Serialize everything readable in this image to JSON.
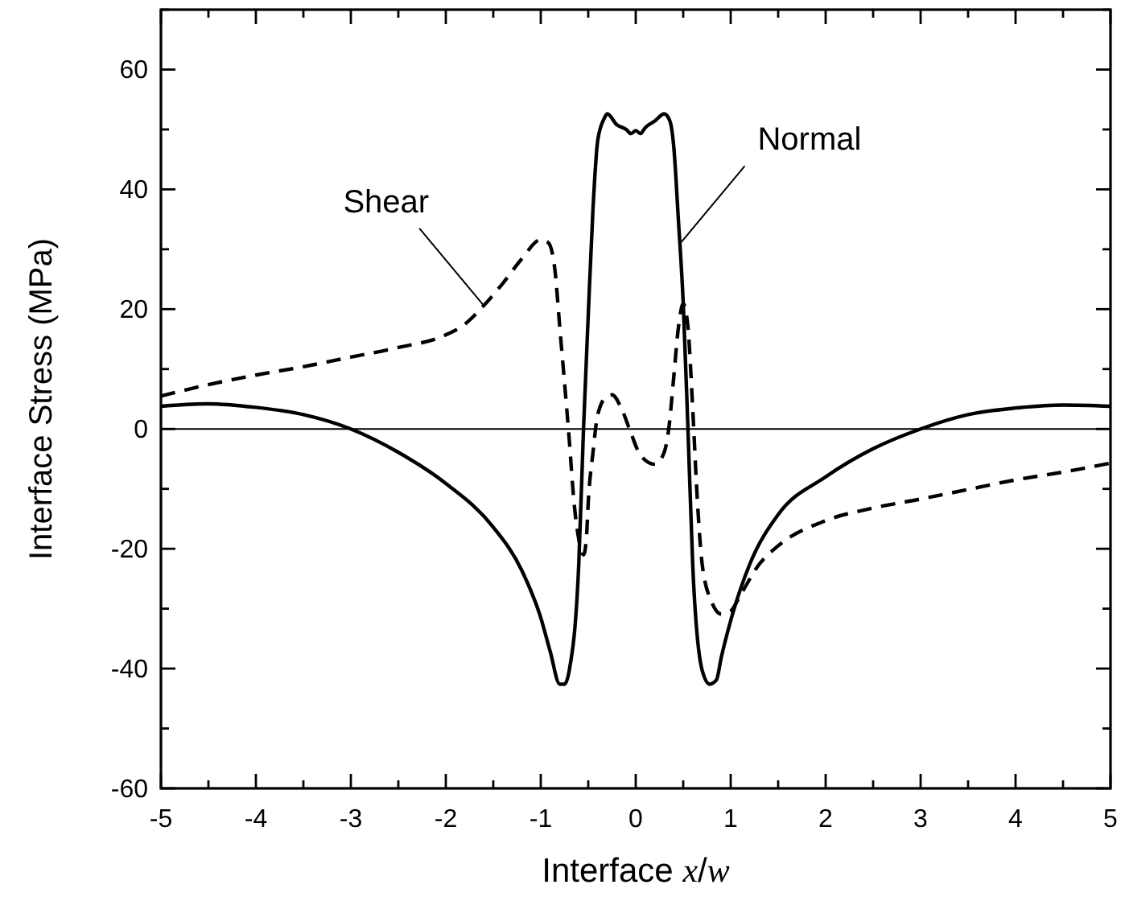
{
  "chart_data": {
    "type": "line",
    "xlabel": "Interface x/w",
    "ylabel": "Interface Stress (MPa)",
    "xlim": [
      -5,
      5
    ],
    "ylim": [
      -60,
      70
    ],
    "xticks": [
      -5,
      {
        "value": -4.5,
        "label": null
      },
      -4,
      {
        "value": -3.5,
        "label": null
      },
      -3,
      {
        "value": -2.5,
        "label": null
      },
      -2,
      {
        "value": -1.5,
        "label": null
      },
      -1,
      {
        "value": -0.5,
        "label": null
      },
      0,
      {
        "value": 0.5,
        "label": null
      },
      1,
      {
        "value": 1.5,
        "label": null
      },
      2,
      {
        "value": 2.5,
        "label": null
      },
      3,
      {
        "value": 3.5,
        "label": null
      },
      4,
      {
        "value": 4.5,
        "label": null
      },
      5
    ],
    "yticks": [
      -60,
      {
        "value": -50,
        "label": null
      },
      -40,
      {
        "value": -30,
        "label": null
      },
      -20,
      {
        "value": -10,
        "label": null
      },
      0,
      {
        "value": 10,
        "label": null
      },
      20,
      {
        "value": 30,
        "label": null
      },
      40,
      {
        "value": 50,
        "label": null
      },
      60,
      {
        "value": 70,
        "label": null
      }
    ],
    "grid": false,
    "marker": "none",
    "ref_lines": [
      {
        "axis": "y",
        "value": 0,
        "color": "#000000",
        "line_style": "solid"
      }
    ],
    "annotations": [
      {
        "text": "Shear",
        "x": -1.6,
        "y": 20.6
      },
      {
        "text": "Normal",
        "x": 0.47,
        "y": 31
      }
    ],
    "series": [
      {
        "color": "#000000",
        "line_style": "solid",
        "x": [
          -5,
          -4.5,
          -4,
          -3.5,
          -3,
          -2.5,
          -2,
          -1.5,
          -1.2,
          -1,
          -0.9,
          -0.8,
          -0.75,
          -0.7,
          -0.6,
          -0.55,
          -0.5,
          -0.45,
          -0.4,
          -0.33,
          -0.3,
          -0.2,
          -0.1,
          -0.05,
          0,
          0.05,
          0.1,
          0.2,
          0.3,
          0.36,
          0.4,
          0.45,
          0.5,
          0.55,
          0.6,
          0.7,
          0.78,
          0.85,
          0.9,
          1,
          1.2,
          1.5,
          2,
          2.5,
          3,
          3.5,
          4,
          4.5,
          5
        ],
        "values": [
          3.8,
          4.2,
          3.6,
          2.4,
          0,
          -3.9,
          -9.1,
          -16.4,
          -23.6,
          -31.5,
          -37.2,
          -42.6,
          -42.6,
          -40.3,
          -22.6,
          0,
          19,
          36.8,
          48.2,
          51.9,
          52.6,
          50.8,
          50,
          49.3,
          49.8,
          49.3,
          50.3,
          51.4,
          52.6,
          51.4,
          47.2,
          34.7,
          21.1,
          0,
          -22.6,
          -40.3,
          -42.6,
          -41.9,
          -38.2,
          -32,
          -22.6,
          -14.3,
          -8,
          -3.3,
          0,
          2.4,
          3.5,
          4,
          3.8
        ]
      },
      {
        "color": "#000000",
        "line_style": "dashed",
        "x": [
          -5,
          -4.5,
          -4,
          -3.5,
          -3,
          -2.5,
          -2,
          -1.8,
          -1.6,
          -1.4,
          -1.2,
          -1,
          -0.92,
          -0.85,
          -0.8,
          -0.7,
          -0.65,
          -0.6,
          -0.55,
          -0.52,
          -0.5,
          -0.45,
          -0.4,
          -0.3,
          -0.25,
          -0.15,
          -0.05,
          0.05,
          0.2,
          0.3,
          0.35,
          0.4,
          0.45,
          0.5,
          0.55,
          0.6,
          0.65,
          0.7,
          0.8,
          0.9,
          1,
          1.1,
          1.3,
          1.5,
          2,
          2.5,
          3,
          3.5,
          4,
          4.5,
          5
        ],
        "values": [
          5.5,
          7.4,
          9,
          10.4,
          12,
          13.6,
          15.7,
          17.5,
          20.6,
          24.3,
          28.4,
          31.6,
          31.1,
          26.4,
          17,
          -1.8,
          -12.2,
          -18.4,
          -21,
          -18.4,
          -12.2,
          -3.9,
          2.4,
          5.5,
          5.7,
          3.4,
          -0.7,
          -4.4,
          -5.9,
          -3.9,
          0.3,
          8.6,
          17,
          20.9,
          17,
          3.4,
          -12.2,
          -22.6,
          -28.9,
          -30.9,
          -30.4,
          -27.8,
          -22.6,
          -19.5,
          -15.3,
          -13.2,
          -11.7,
          -10.1,
          -8.5,
          -7.2,
          -5.7
        ]
      }
    ]
  }
}
